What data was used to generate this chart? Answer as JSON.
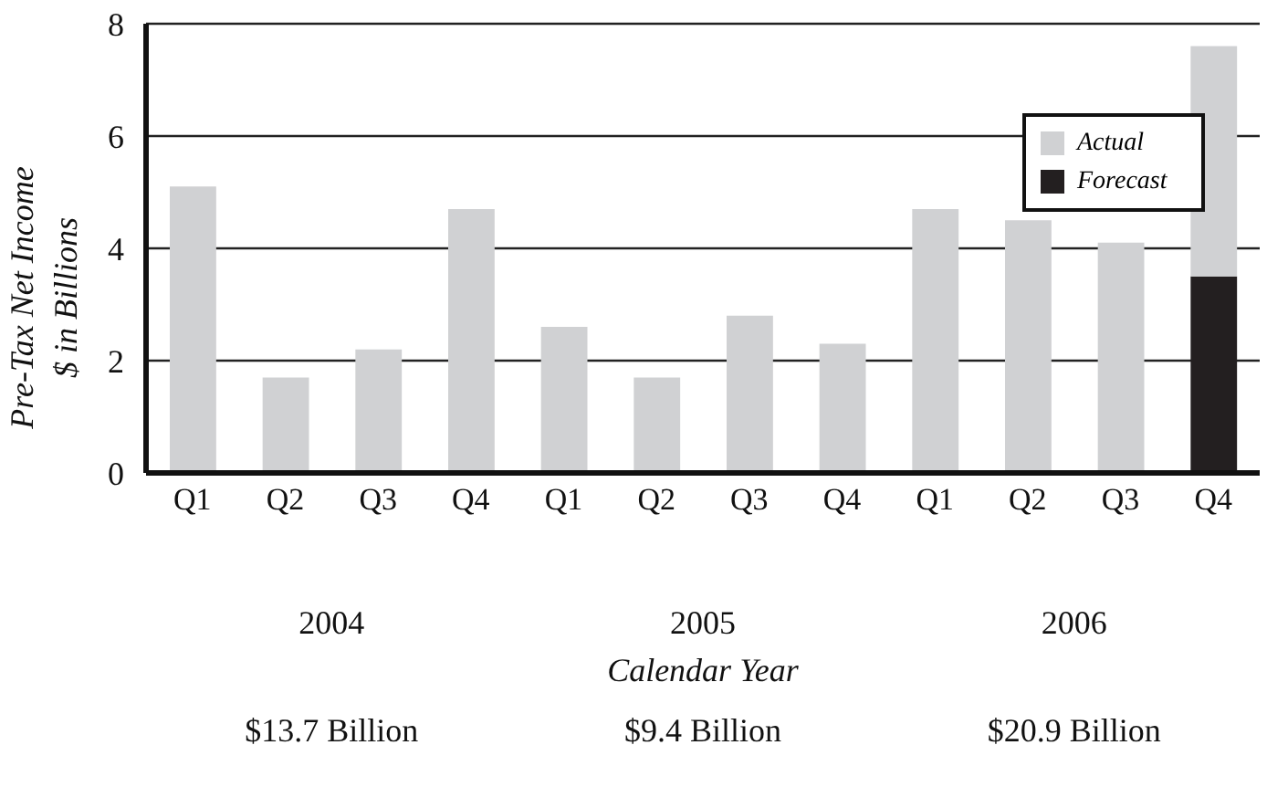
{
  "chart_data": {
    "type": "bar",
    "stacked": true,
    "categories": [
      "Q1",
      "Q2",
      "Q3",
      "Q4",
      "Q1",
      "Q2",
      "Q3",
      "Q4",
      "Q1",
      "Q2",
      "Q3",
      "Q4"
    ],
    "series": [
      {
        "name": "Forecast",
        "color": "#231f20",
        "values": [
          null,
          null,
          null,
          null,
          null,
          null,
          null,
          null,
          null,
          null,
          null,
          3.5
        ]
      },
      {
        "name": "Actual",
        "color": "#d0d1d3",
        "values": [
          5.1,
          1.7,
          2.2,
          4.7,
          2.6,
          1.7,
          2.8,
          2.3,
          4.7,
          4.5,
          4.1,
          4.1
        ]
      }
    ],
    "ylabel": "Pre-Tax Net Income\n$ in Billions",
    "xlabel": "Calendar Year",
    "ylim": [
      0,
      8
    ],
    "yticks": [
      0,
      2,
      4,
      6,
      8
    ],
    "grid": "y",
    "legend": "top right",
    "annotations": [
      "2004",
      "2005",
      "2006",
      "$13.7 Billion",
      "$9.4 Billion",
      "$20.9 Billion"
    ]
  }
}
